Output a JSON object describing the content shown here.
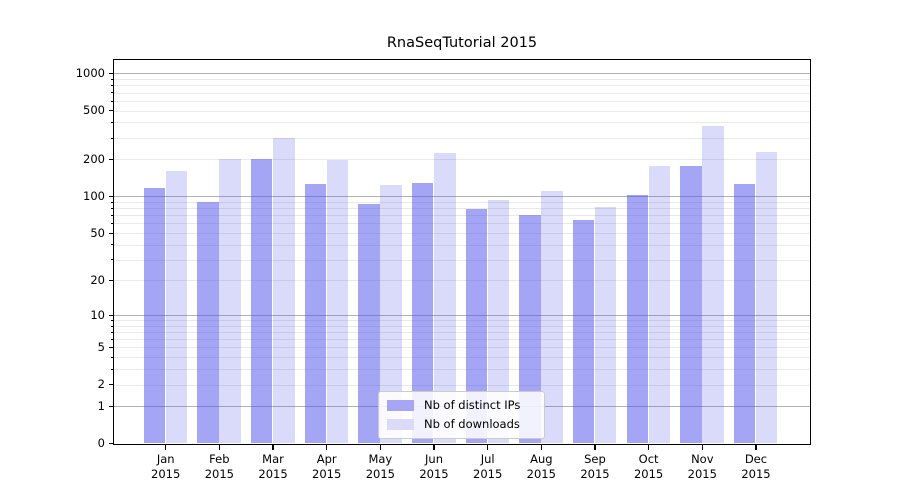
{
  "chart_data": {
    "type": "bar",
    "title": "RnaSeqTutorial 2015",
    "x_axis": {
      "categories": [
        "Jan",
        "Feb",
        "Mar",
        "Apr",
        "May",
        "Jun",
        "Jul",
        "Aug",
        "Sep",
        "Oct",
        "Nov",
        "Dec"
      ],
      "year_label": "2015"
    },
    "y_axis": {
      "scale": "log1p",
      "tick_labels": [
        0,
        1,
        2,
        5,
        10,
        20,
        50,
        100,
        200,
        500,
        1000
      ],
      "ylim": [
        0,
        1280
      ]
    },
    "series": [
      {
        "name": "Nb of distinct IPs",
        "color": "rgba(82,82,235,0.52)",
        "legend_color": "#a6a6f4",
        "values": [
          117,
          90,
          203,
          125,
          87,
          128,
          78,
          70,
          64,
          102,
          178,
          126
        ]
      },
      {
        "name": "Nb of downloads",
        "color": "rgba(82,82,235,0.21)",
        "legend_color": "#dbdbf9",
        "values": [
          160,
          200,
          300,
          198,
          123,
          225,
          93,
          110,
          82,
          178,
          375,
          230
        ]
      }
    ],
    "grid": {
      "major_color": "#b2b2b2",
      "minor_color": "#e9e9e9"
    },
    "legend": {
      "position": "bottom-center"
    }
  }
}
